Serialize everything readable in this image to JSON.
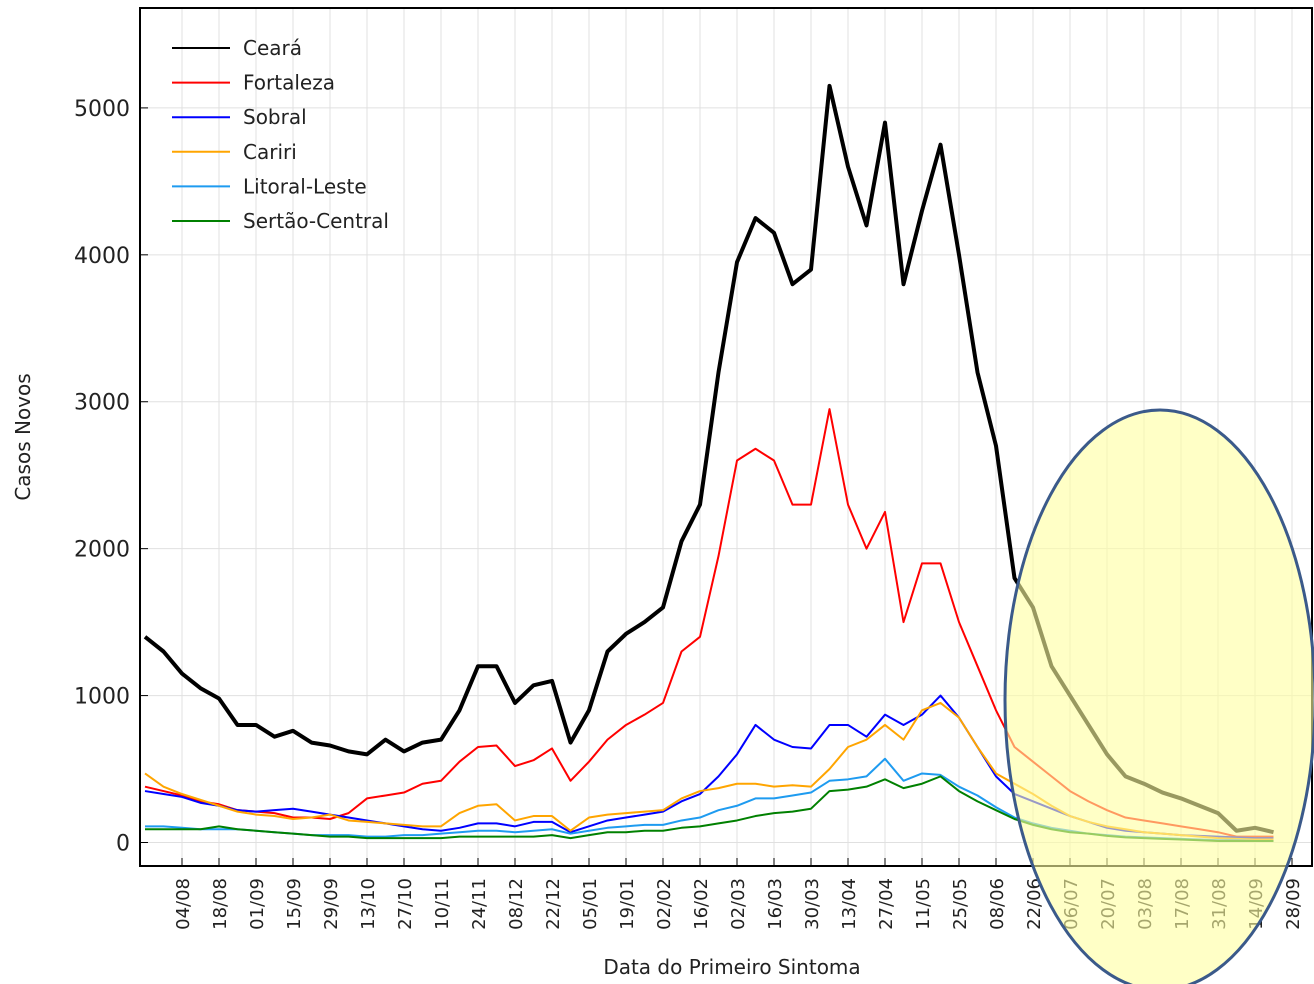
{
  "chart_data": {
    "type": "line",
    "xlabel": "Data do Primeiro Sintoma",
    "ylabel": "Casos Novos",
    "categories": [
      null,
      null,
      "04/08",
      null,
      "18/08",
      null,
      "01/09",
      null,
      "15/09",
      null,
      "29/09",
      null,
      "13/10",
      null,
      "27/10",
      null,
      "10/11",
      null,
      "24/11",
      null,
      "08/12",
      null,
      "22/12",
      null,
      "05/01",
      null,
      "19/01",
      null,
      "02/02",
      null,
      "16/02",
      null,
      "02/03",
      null,
      "16/03",
      null,
      "30/03",
      null,
      "13/04",
      null,
      "27/04",
      null,
      "11/05",
      null,
      "25/05",
      null,
      "08/06",
      null,
      "22/06",
      null,
      "06/07",
      null,
      "20/07",
      null,
      "03/08",
      null,
      "17/08",
      null,
      "31/08",
      null,
      "14/09",
      null,
      "28/09",
      null
    ],
    "series": [
      {
        "name": "Ceará",
        "color": "#000000",
        "values": [
          1400,
          1300,
          1150,
          1050,
          980,
          800,
          800,
          720,
          760,
          680,
          660,
          620,
          600,
          700,
          620,
          680,
          700,
          900,
          1200,
          1200,
          950,
          1070,
          1100,
          680,
          900,
          1300,
          1420,
          1500,
          1600,
          2050,
          2300,
          3200,
          3950,
          4250,
          4150,
          3800,
          3900,
          5150,
          4600,
          4200,
          4900,
          3800,
          4300,
          4750,
          4000,
          3200,
          2700,
          1800,
          1600,
          1200,
          1000,
          800,
          600,
          450,
          400,
          340,
          300,
          250,
          200,
          80,
          100,
          70,
          null,
          null
        ]
      },
      {
        "name": "Fortaleza",
        "color": "#ff0000",
        "values": [
          380,
          350,
          320,
          280,
          260,
          220,
          210,
          200,
          170,
          170,
          160,
          200,
          300,
          320,
          340,
          400,
          420,
          550,
          650,
          660,
          520,
          560,
          640,
          420,
          550,
          700,
          800,
          870,
          950,
          1300,
          1400,
          1950,
          2600,
          2680,
          2600,
          2300,
          2300,
          2950,
          2300,
          2000,
          2250,
          1500,
          1900,
          1900,
          1500,
          1200,
          900,
          650,
          550,
          450,
          350,
          280,
          220,
          170,
          150,
          130,
          110,
          90,
          70,
          40,
          40,
          40,
          null,
          null
        ]
      },
      {
        "name": "Sobral",
        "color": "#0000ff",
        "values": [
          350,
          330,
          310,
          270,
          250,
          220,
          210,
          220,
          230,
          210,
          190,
          170,
          150,
          130,
          110,
          90,
          80,
          100,
          130,
          130,
          110,
          140,
          140,
          70,
          110,
          150,
          170,
          190,
          210,
          280,
          330,
          450,
          600,
          800,
          700,
          650,
          640,
          800,
          800,
          720,
          870,
          800,
          870,
          1000,
          850,
          650,
          450,
          330,
          280,
          230,
          180,
          140,
          100,
          80,
          70,
          60,
          50,
          45,
          40,
          35,
          30,
          30,
          null,
          null
        ]
      },
      {
        "name": "Cariri",
        "color": "#ffa500",
        "values": [
          470,
          380,
          330,
          290,
          250,
          210,
          190,
          180,
          160,
          170,
          190,
          150,
          140,
          130,
          120,
          110,
          110,
          200,
          250,
          260,
          150,
          180,
          180,
          80,
          170,
          190,
          200,
          210,
          220,
          300,
          350,
          370,
          400,
          400,
          380,
          390,
          380,
          500,
          650,
          700,
          800,
          700,
          900,
          950,
          850,
          650,
          470,
          400,
          330,
          250,
          180,
          140,
          110,
          90,
          70,
          60,
          50,
          40,
          30,
          25,
          20,
          20,
          null,
          null
        ]
      },
      {
        "name": "Litoral-Leste",
        "color": "#1e9bf0",
        "values": [
          110,
          110,
          100,
          90,
          90,
          90,
          80,
          70,
          60,
          50,
          50,
          50,
          40,
          40,
          50,
          50,
          60,
          70,
          80,
          80,
          70,
          80,
          90,
          60,
          80,
          100,
          110,
          120,
          120,
          150,
          170,
          220,
          250,
          300,
          300,
          320,
          340,
          420,
          430,
          450,
          570,
          420,
          470,
          460,
          380,
          320,
          240,
          170,
          130,
          100,
          80,
          60,
          50,
          40,
          35,
          30,
          25,
          20,
          15,
          15,
          10,
          10,
          null,
          null
        ]
      },
      {
        "name": "Sertão-Central",
        "color": "#008000",
        "values": [
          90,
          90,
          90,
          90,
          110,
          90,
          80,
          70,
          60,
          50,
          40,
          40,
          30,
          30,
          30,
          30,
          30,
          40,
          40,
          40,
          40,
          40,
          50,
          30,
          50,
          70,
          70,
          80,
          80,
          100,
          110,
          130,
          150,
          180,
          200,
          210,
          230,
          350,
          360,
          380,
          430,
          370,
          400,
          450,
          350,
          280,
          220,
          160,
          120,
          90,
          70,
          60,
          45,
          35,
          30,
          25,
          20,
          15,
          10,
          10,
          10,
          10,
          null,
          null
        ]
      }
    ],
    "ylim": [
      -160,
      5680
    ],
    "yticks": [
      0,
      1000,
      2000,
      3000,
      4000,
      5000
    ],
    "grid": true,
    "legend": "upper left"
  }
}
